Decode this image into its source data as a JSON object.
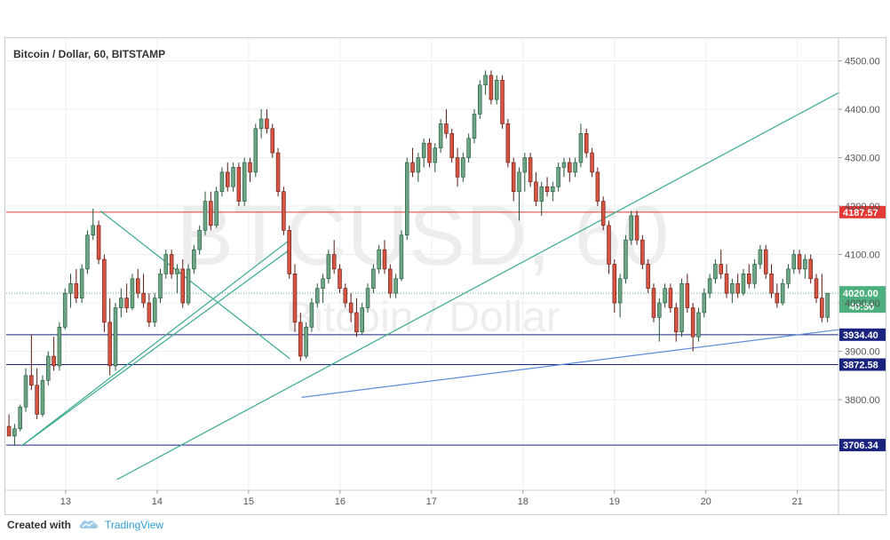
{
  "chart_data": {
    "type": "candlestick",
    "title": "Bitcoin / Dollar, 60, BITSTAMP",
    "watermark": {
      "symbol": "BTCUSD, 60",
      "name": "Bitcoin / Dollar"
    },
    "y_ticks": [
      "4500.00",
      "4400.00",
      "4300.00",
      "4200.00",
      "4100.00",
      "4000.00",
      "3900.00",
      "3800.00"
    ],
    "x_ticks": [
      "13",
      "14",
      "15",
      "16",
      "17",
      "18",
      "19",
      "20",
      "21"
    ],
    "ylim": [
      3613,
      4545
    ],
    "grid": true,
    "horizontal_levels": [
      {
        "value": 4187.57,
        "label": "4187.57",
        "color": "#e53935"
      },
      {
        "value": 3934.4,
        "label": "3934.40",
        "color": "#1a237e"
      },
      {
        "value": 3872.58,
        "label": "3872.58",
        "color": "#1a237e"
      },
      {
        "value": 3706.34,
        "label": "3706.34",
        "color": "#1a237e"
      }
    ],
    "last_price": {
      "value": 4020.0,
      "label": "4020.00",
      "countdown": "40:50",
      "color": "#4caf7d"
    },
    "trendlines": [
      {
        "color": "#3aaa8c",
        "points": [
          [
            12.52,
            3705
          ],
          [
            15.45,
            4110
          ]
        ]
      },
      {
        "color": "#3aaa8c",
        "points": [
          [
            12.52,
            3705
          ],
          [
            15.45,
            4130
          ]
        ]
      },
      {
        "color": "#3aaa8c",
        "points": [
          [
            13.38,
            4190
          ],
          [
            15.45,
            3885
          ]
        ]
      },
      {
        "color": "#3aaa8c",
        "points": [
          [
            13.56,
            3635
          ],
          [
            21.46,
            4435
          ]
        ]
      },
      {
        "color": "#5b8fd6",
        "points": [
          [
            15.58,
            3805
          ],
          [
            21.46,
            3945
          ]
        ]
      }
    ],
    "series": [
      {
        "name": "",
        "candles": [
          [
            3745,
            3770,
            3725,
            3725
          ],
          [
            3725,
            3750,
            3705,
            3740
          ],
          [
            3740,
            3790,
            3735,
            3785
          ],
          [
            3785,
            3865,
            3775,
            3850
          ],
          [
            3850,
            3935,
            3820,
            3830
          ],
          [
            3830,
            3865,
            3760,
            3770
          ],
          [
            3770,
            3850,
            3765,
            3840
          ],
          [
            3840,
            3900,
            3830,
            3890
          ],
          [
            3890,
            3930,
            3860,
            3870
          ],
          [
            3870,
            3960,
            3860,
            3950
          ],
          [
            3950,
            4030,
            3945,
            4020
          ],
          [
            4020,
            4060,
            3990,
            4040
          ],
          [
            4040,
            4070,
            4000,
            4010
          ],
          [
            4010,
            4080,
            4000,
            4070
          ],
          [
            4070,
            4150,
            4060,
            4140
          ],
          [
            4140,
            4195,
            4130,
            4160
          ],
          [
            4160,
            4170,
            4080,
            4090
          ],
          [
            4090,
            4100,
            3940,
            3960
          ],
          [
            3960,
            4010,
            3850,
            3870
          ],
          [
            3870,
            4000,
            3860,
            3990
          ],
          [
            3990,
            4030,
            3970,
            4010
          ],
          [
            4010,
            4040,
            3980,
            3990
          ],
          [
            3990,
            4060,
            3985,
            4050
          ],
          [
            4050,
            4070,
            4010,
            4020
          ],
          [
            4020,
            4060,
            3990,
            4000
          ],
          [
            4000,
            4020,
            3950,
            3960
          ],
          [
            3960,
            4020,
            3950,
            4010
          ],
          [
            4010,
            4070,
            4000,
            4060
          ],
          [
            4060,
            4110,
            4050,
            4100
          ],
          [
            4100,
            4110,
            4050,
            4060
          ],
          [
            4060,
            4080,
            4020,
            4070
          ],
          [
            4070,
            4090,
            3990,
            4000
          ],
          [
            4000,
            4080,
            3995,
            4070
          ],
          [
            4070,
            4120,
            4060,
            4110
          ],
          [
            4110,
            4160,
            4100,
            4150
          ],
          [
            4150,
            4230,
            4140,
            4210
          ],
          [
            4210,
            4230,
            4150,
            4160
          ],
          [
            4160,
            4240,
            4155,
            4230
          ],
          [
            4230,
            4280,
            4220,
            4270
          ],
          [
            4270,
            4290,
            4230,
            4240
          ],
          [
            4240,
            4290,
            4230,
            4280
          ],
          [
            4280,
            4290,
            4200,
            4210
          ],
          [
            4210,
            4300,
            4200,
            4290
          ],
          [
            4290,
            4300,
            4250,
            4270
          ],
          [
            4270,
            4370,
            4260,
            4360
          ],
          [
            4360,
            4400,
            4340,
            4380
          ],
          [
            4380,
            4400,
            4350,
            4360
          ],
          [
            4360,
            4370,
            4300,
            4310
          ],
          [
            4310,
            4320,
            4220,
            4230
          ],
          [
            4230,
            4240,
            4140,
            4150
          ],
          [
            4150,
            4160,
            4050,
            4060
          ],
          [
            4060,
            4080,
            3940,
            3960
          ],
          [
            3960,
            3980,
            3880,
            3890
          ],
          [
            3890,
            3960,
            3885,
            3950
          ],
          [
            3950,
            4010,
            3940,
            4000
          ],
          [
            4000,
            4040,
            3990,
            4030
          ],
          [
            4030,
            4060,
            4000,
            4050
          ],
          [
            4050,
            4110,
            4040,
            4100
          ],
          [
            4100,
            4130,
            4060,
            4070
          ],
          [
            4070,
            4080,
            4020,
            4030
          ],
          [
            4030,
            4040,
            3990,
            4000
          ],
          [
            4000,
            4020,
            3960,
            3980
          ],
          [
            3980,
            4010,
            3930,
            3940
          ],
          [
            3940,
            4000,
            3935,
            3990
          ],
          [
            3990,
            4040,
            3980,
            4030
          ],
          [
            4030,
            4080,
            4020,
            4070
          ],
          [
            4070,
            4120,
            4060,
            4110
          ],
          [
            4110,
            4130,
            4060,
            4070
          ],
          [
            4070,
            4080,
            4010,
            4020
          ],
          [
            4020,
            4060,
            4010,
            4050
          ],
          [
            4050,
            4150,
            4045,
            4140
          ],
          [
            4140,
            4300,
            4130,
            4290
          ],
          [
            4290,
            4320,
            4260,
            4270
          ],
          [
            4270,
            4310,
            4250,
            4300
          ],
          [
            4300,
            4340,
            4280,
            4330
          ],
          [
            4330,
            4340,
            4280,
            4290
          ],
          [
            4290,
            4330,
            4270,
            4320
          ],
          [
            4320,
            4380,
            4310,
            4370
          ],
          [
            4370,
            4400,
            4340,
            4350
          ],
          [
            4350,
            4360,
            4290,
            4300
          ],
          [
            4300,
            4320,
            4240,
            4260
          ],
          [
            4260,
            4310,
            4250,
            4300
          ],
          [
            4300,
            4350,
            4290,
            4340
          ],
          [
            4340,
            4400,
            4330,
            4390
          ],
          [
            4390,
            4460,
            4380,
            4450
          ],
          [
            4450,
            4480,
            4430,
            4470
          ],
          [
            4470,
            4480,
            4410,
            4420
          ],
          [
            4420,
            4470,
            4410,
            4460
          ],
          [
            4460,
            4470,
            4360,
            4370
          ],
          [
            4370,
            4380,
            4280,
            4290
          ],
          [
            4290,
            4300,
            4210,
            4230
          ],
          [
            4230,
            4280,
            4170,
            4270
          ],
          [
            4270,
            4310,
            4230,
            4300
          ],
          [
            4300,
            4310,
            4240,
            4250
          ],
          [
            4250,
            4270,
            4200,
            4210
          ],
          [
            4210,
            4250,
            4180,
            4240
          ],
          [
            4240,
            4260,
            4220,
            4230
          ],
          [
            4230,
            4250,
            4210,
            4240
          ],
          [
            4240,
            4290,
            4230,
            4280
          ],
          [
            4280,
            4300,
            4260,
            4290
          ],
          [
            4290,
            4300,
            4250,
            4270
          ],
          [
            4270,
            4300,
            4260,
            4290
          ],
          [
            4290,
            4370,
            4280,
            4350
          ],
          [
            4350,
            4360,
            4300,
            4310
          ],
          [
            4310,
            4320,
            4260,
            4270
          ],
          [
            4270,
            4280,
            4200,
            4210
          ],
          [
            4210,
            4220,
            4150,
            4160
          ],
          [
            4160,
            4170,
            4060,
            4080
          ],
          [
            4080,
            4090,
            3980,
            4000
          ],
          [
            4000,
            4060,
            3970,
            4050
          ],
          [
            4050,
            4140,
            4040,
            4130
          ],
          [
            4130,
            4190,
            4120,
            4180
          ],
          [
            4180,
            4190,
            4120,
            4130
          ],
          [
            4130,
            4140,
            4070,
            4080
          ],
          [
            4080,
            4090,
            4020,
            4030
          ],
          [
            4030,
            4040,
            3960,
            3970
          ],
          [
            3970,
            4010,
            3920,
            4000
          ],
          [
            4000,
            4040,
            3990,
            4030
          ],
          [
            4030,
            4040,
            3980,
            3990
          ],
          [
            3990,
            4000,
            3920,
            3940
          ],
          [
            3940,
            4050,
            3930,
            4040
          ],
          [
            4040,
            4060,
            3980,
            3990
          ],
          [
            3990,
            4000,
            3900,
            3930
          ],
          [
            3930,
            3990,
            3920,
            3980
          ],
          [
            3980,
            4030,
            3970,
            4020
          ],
          [
            4020,
            4060,
            4010,
            4050
          ],
          [
            4050,
            4090,
            4040,
            4080
          ],
          [
            4080,
            4110,
            4050,
            4060
          ],
          [
            4060,
            4080,
            4010,
            4020
          ],
          [
            4020,
            4050,
            4000,
            4040
          ],
          [
            4040,
            4060,
            4010,
            4020
          ],
          [
            4020,
            4070,
            4015,
            4060
          ],
          [
            4060,
            4080,
            4030,
            4040
          ],
          [
            4040,
            4090,
            4030,
            4080
          ],
          [
            4080,
            4120,
            4070,
            4110
          ],
          [
            4110,
            4120,
            4050,
            4060
          ],
          [
            4060,
            4080,
            4010,
            4020
          ],
          [
            4020,
            4040,
            3990,
            4000
          ],
          [
            4000,
            4050,
            3995,
            4040
          ],
          [
            4040,
            4080,
            4030,
            4070
          ],
          [
            4070,
            4110,
            4060,
            4100
          ],
          [
            4100,
            4110,
            4060,
            4070
          ],
          [
            4070,
            4100,
            4050,
            4090
          ],
          [
            4090,
            4100,
            4040,
            4050
          ],
          [
            4050,
            4060,
            4000,
            4010
          ],
          [
            4010,
            4060,
            3960,
            3970
          ],
          [
            3970,
            4020,
            3960,
            4020
          ]
        ]
      }
    ]
  },
  "footer": {
    "created_with": "Created with",
    "brand": "TradingView"
  }
}
